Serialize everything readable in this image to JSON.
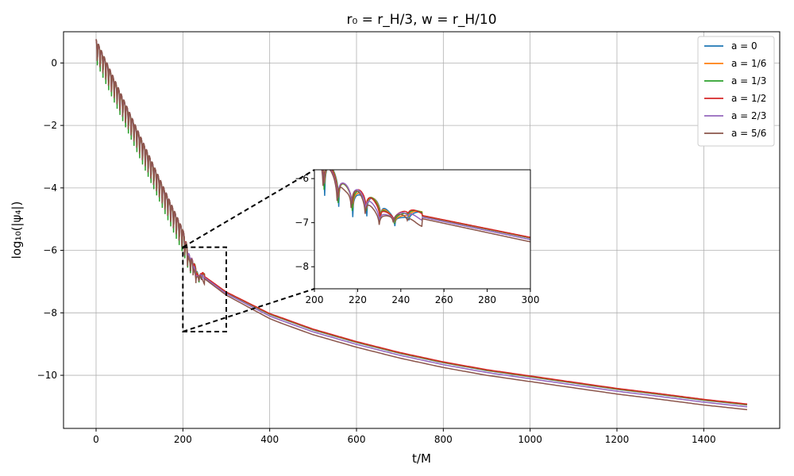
{
  "chart_data": {
    "type": "line",
    "title": "r₀ = r_H/3, w = r_H/10",
    "xlabel": "t/M",
    "ylabel": "log₁₀(|ψ₄|)",
    "xlim": [
      -75,
      1575
    ],
    "ylim": [
      -11.7,
      1.0
    ],
    "xticks": [
      0,
      200,
      400,
      600,
      800,
      1000,
      1200,
      1400
    ],
    "yticks": [
      0,
      -2,
      -4,
      -6,
      -8,
      -10
    ],
    "grid": true,
    "legend_position": "top-right",
    "series": [
      {
        "name": "a = 0",
        "color": "#1f77b4",
        "tail_offset": 0.0,
        "ring_phase": 0.0
      },
      {
        "name": "a = 1/6",
        "color": "#ff7f0e",
        "tail_offset": 0.01,
        "ring_phase": 0.4
      },
      {
        "name": "a = 1/3",
        "color": "#2ca02c",
        "tail_offset": 0.02,
        "ring_phase": 0.8
      },
      {
        "name": "a = 1/2",
        "color": "#d62728",
        "tail_offset": 0.03,
        "ring_phase": 1.2
      },
      {
        "name": "a = 2/3",
        "color": "#9467bd",
        "tail_offset": -0.06,
        "ring_phase": 1.8
      },
      {
        "name": "a = 5/6",
        "color": "#8c564b",
        "tail_offset": -0.15,
        "ring_phase": 2.4
      }
    ],
    "tail_curve": {
      "x": [
        250,
        300,
        400,
        500,
        600,
        700,
        800,
        900,
        1000,
        1100,
        1200,
        1300,
        1400,
        1500
      ],
      "y": [
        -6.85,
        -7.35,
        -8.05,
        -8.55,
        -8.95,
        -9.3,
        -9.6,
        -9.85,
        -10.05,
        -10.25,
        -10.45,
        -10.62,
        -10.8,
        -10.95
      ]
    },
    "inset": {
      "xlim": [
        200,
        300
      ],
      "ylim": [
        -8.5,
        -5.8
      ],
      "xticks": [
        200,
        220,
        240,
        260,
        280,
        300
      ],
      "yticks": [
        -6,
        -7,
        -8
      ],
      "source_box": {
        "x": [
          200,
          300
        ],
        "y": [
          -8.6,
          -5.9
        ]
      }
    }
  }
}
